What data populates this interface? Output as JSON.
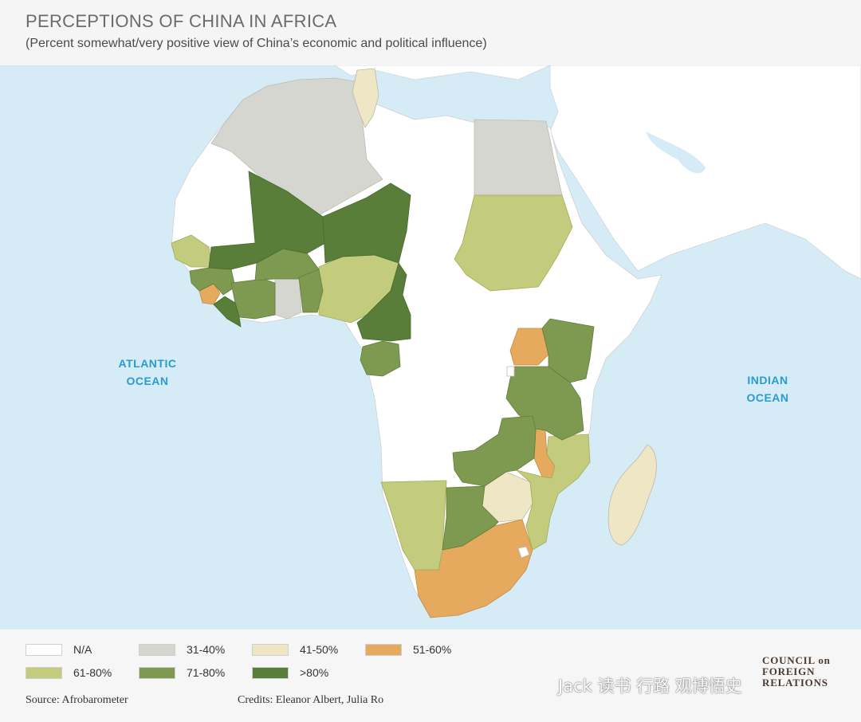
{
  "header": {
    "title": "PERCEPTIONS OF CHINA IN AFRICA",
    "subtitle": "(Percent somewhat/very positive view of China’s economic and political influence)"
  },
  "map": {
    "ocean_labels": {
      "atlantic_1": "ATLANTIC",
      "atlantic_2": "OCEAN",
      "indian_1": "INDIAN",
      "indian_2": "OCEAN"
    },
    "colors": {
      "sea": "#d5ecf7",
      "na": "#ffffff",
      "other_land": "#ffffff",
      "31_40": "#d6d6d0",
      "41_50": "#efe6c6",
      "51_60": "#e6aa5e",
      "61_80": "#c3cc7c",
      "71_80": "#7e9a50",
      "gt80": "#587e3a"
    }
  },
  "legend": {
    "items": [
      {
        "label": "N/A",
        "color": "#ffffff"
      },
      {
        "label": "31-40%",
        "color": "#d6d6d0"
      },
      {
        "label": "41-50%",
        "color": "#efe6c6"
      },
      {
        "label": "51-60%",
        "color": "#e6aa5e"
      },
      {
        "label": "61-80%",
        "color": "#c3cc7c"
      },
      {
        "label": "71-80%",
        "color": "#7e9a50"
      },
      {
        "label": ">80%",
        "color": "#587e3a"
      }
    ]
  },
  "footer": {
    "source": "Source: Afrobarometer",
    "credits": "Credits: Eleanor Albert, Julia Ro",
    "logo_line1": "COUNCIL on",
    "logo_line2": "FOREIGN",
    "logo_line3": "RELATIONS",
    "watermark": "Jack 读书 行路 观博悟史"
  }
}
